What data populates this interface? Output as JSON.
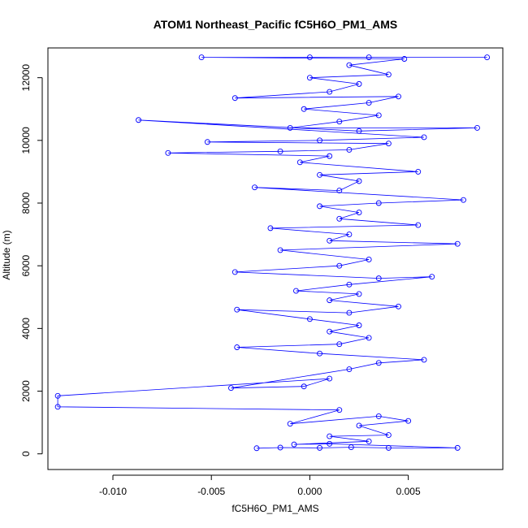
{
  "chart_data": {
    "type": "scatter",
    "title": "ATOM1 Northeast_Pacific fC5H6O_PM1_AMS",
    "xlabel": "fC5H6O_PM1_AMS",
    "ylabel": "Altitude (m)",
    "xlim": [
      -0.0133,
      0.0098
    ],
    "ylim": [
      -500,
      12950
    ],
    "xticks": [
      -0.01,
      -0.005,
      0.0,
      0.005
    ],
    "xtick_labels": [
      "-0.010",
      "-0.005",
      "0.000",
      "0.005"
    ],
    "yticks": [
      0,
      2000,
      4000,
      6000,
      8000,
      10000,
      12000
    ],
    "ytick_labels": [
      "0",
      "2000",
      "4000",
      "6000",
      "8000",
      "10000",
      "12000"
    ],
    "grid": false,
    "legend": "none",
    "style": "points connected by lines (open circles)",
    "color": "#0000ff",
    "series": [
      {
        "points": [
          {
            "x": -0.0027,
            "y": 180
          },
          {
            "x": -0.0015,
            "y": 200
          },
          {
            "x": 0.0005,
            "y": 190
          },
          {
            "x": 0.0021,
            "y": 210
          },
          {
            "x": 0.004,
            "y": 190
          },
          {
            "x": 0.0075,
            "y": 190
          },
          {
            "x": 0.001,
            "y": 320
          },
          {
            "x": -0.0008,
            "y": 300
          },
          {
            "x": 0.003,
            "y": 400
          },
          {
            "x": 0.001,
            "y": 560
          },
          {
            "x": 0.004,
            "y": 600
          },
          {
            "x": 0.0025,
            "y": 900
          },
          {
            "x": 0.005,
            "y": 1050
          },
          {
            "x": 0.0035,
            "y": 1200
          },
          {
            "x": -0.001,
            "y": 960
          },
          {
            "x": 0.0015,
            "y": 1400
          },
          {
            "x": -0.0128,
            "y": 1500
          },
          {
            "x": -0.0128,
            "y": 1850
          },
          {
            "x": 0.001,
            "y": 2400
          },
          {
            "x": -0.0003,
            "y": 2150
          },
          {
            "x": -0.004,
            "y": 2100
          },
          {
            "x": 0.002,
            "y": 2700
          },
          {
            "x": 0.0035,
            "y": 2900
          },
          {
            "x": 0.0058,
            "y": 3000
          },
          {
            "x": 0.0005,
            "y": 3200
          },
          {
            "x": -0.0037,
            "y": 3400
          },
          {
            "x": 0.0015,
            "y": 3500
          },
          {
            "x": 0.003,
            "y": 3700
          },
          {
            "x": 0.001,
            "y": 3900
          },
          {
            "x": 0.0025,
            "y": 4100
          },
          {
            "x": 0.0,
            "y": 4300
          },
          {
            "x": -0.0037,
            "y": 4600
          },
          {
            "x": 0.002,
            "y": 4500
          },
          {
            "x": 0.0045,
            "y": 4700
          },
          {
            "x": 0.001,
            "y": 4900
          },
          {
            "x": 0.0025,
            "y": 5100
          },
          {
            "x": -0.0007,
            "y": 5200
          },
          {
            "x": 0.002,
            "y": 5400
          },
          {
            "x": 0.0062,
            "y": 5650
          },
          {
            "x": 0.0035,
            "y": 5600
          },
          {
            "x": -0.0038,
            "y": 5800
          },
          {
            "x": 0.0015,
            "y": 6000
          },
          {
            "x": 0.003,
            "y": 6200
          },
          {
            "x": -0.0015,
            "y": 6500
          },
          {
            "x": 0.0075,
            "y": 6700
          },
          {
            "x": 0.001,
            "y": 6800
          },
          {
            "x": 0.002,
            "y": 7000
          },
          {
            "x": -0.002,
            "y": 7200
          },
          {
            "x": 0.0055,
            "y": 7300
          },
          {
            "x": 0.0015,
            "y": 7500
          },
          {
            "x": 0.0025,
            "y": 7700
          },
          {
            "x": 0.0005,
            "y": 7900
          },
          {
            "x": 0.0035,
            "y": 8000
          },
          {
            "x": 0.0078,
            "y": 8100
          },
          {
            "x": -0.0028,
            "y": 8500
          },
          {
            "x": 0.0015,
            "y": 8400
          },
          {
            "x": 0.0025,
            "y": 8700
          },
          {
            "x": 0.0005,
            "y": 8900
          },
          {
            "x": 0.0055,
            "y": 9000
          },
          {
            "x": -0.0005,
            "y": 9300
          },
          {
            "x": 0.001,
            "y": 9500
          },
          {
            "x": -0.0072,
            "y": 9600
          },
          {
            "x": -0.0015,
            "y": 9650
          },
          {
            "x": 0.002,
            "y": 9700
          },
          {
            "x": 0.004,
            "y": 9900
          },
          {
            "x": -0.0052,
            "y": 9950
          },
          {
            "x": 0.0005,
            "y": 10000
          },
          {
            "x": 0.0058,
            "y": 10100
          },
          {
            "x": -0.0087,
            "y": 10650
          },
          {
            "x": 0.0025,
            "y": 10300
          },
          {
            "x": 0.0085,
            "y": 10400
          },
          {
            "x": -0.001,
            "y": 10400
          },
          {
            "x": 0.0015,
            "y": 10600
          },
          {
            "x": 0.0035,
            "y": 10800
          },
          {
            "x": -0.0003,
            "y": 11000
          },
          {
            "x": 0.003,
            "y": 11200
          },
          {
            "x": 0.0045,
            "y": 11400
          },
          {
            "x": -0.0038,
            "y": 11350
          },
          {
            "x": 0.001,
            "y": 11550
          },
          {
            "x": 0.0025,
            "y": 11800
          },
          {
            "x": 0.0,
            "y": 12000
          },
          {
            "x": 0.004,
            "y": 12100
          },
          {
            "x": 0.002,
            "y": 12400
          },
          {
            "x": 0.0048,
            "y": 12600
          },
          {
            "x": -0.0055,
            "y": 12650
          },
          {
            "x": 0.0,
            "y": 12650
          },
          {
            "x": 0.003,
            "y": 12650
          },
          {
            "x": 0.009,
            "y": 12650
          }
        ]
      }
    ]
  }
}
